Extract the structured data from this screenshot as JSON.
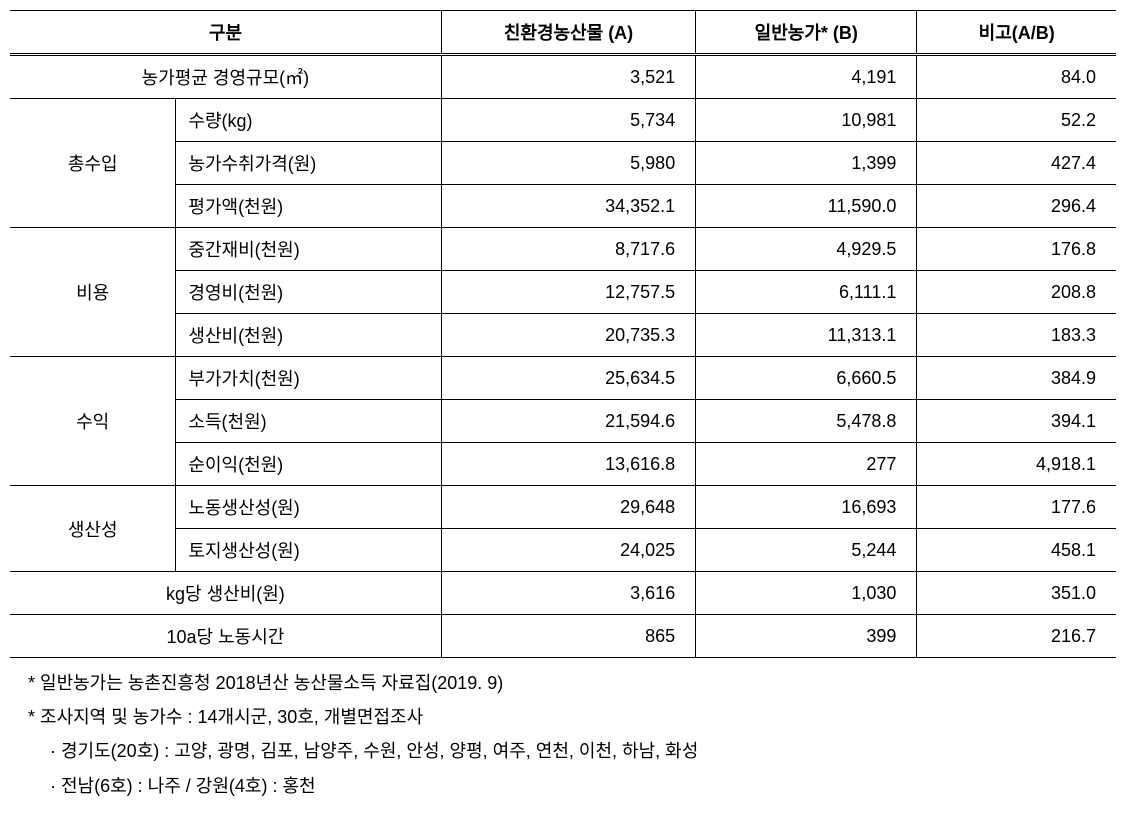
{
  "headers": {
    "category": "구분",
    "col_a": "친환경농산물 (A)",
    "col_b": "일반농가* (B)",
    "col_c": "비고(A/B)"
  },
  "rows": {
    "farm_avg": {
      "label": "농가평균 경영규모(㎡)",
      "a": "3,521",
      "b": "4,191",
      "c": "84.0"
    },
    "income_group": {
      "label": "총수입"
    },
    "income_qty": {
      "label": "수량(kg)",
      "a": "5,734",
      "b": "10,981",
      "c": "52.2"
    },
    "income_price": {
      "label": "농가수취가격(원)",
      "a": "5,980",
      "b": "1,399",
      "c": "427.4"
    },
    "income_eval": {
      "label": "평가액(천원)",
      "a": "34,352.1",
      "b": "11,590.0",
      "c": "296.4"
    },
    "cost_group": {
      "label": "비용"
    },
    "cost_inter": {
      "label": "중간재비(천원)",
      "a": "8,717.6",
      "b": "4,929.5",
      "c": "176.8"
    },
    "cost_mgmt": {
      "label": "경영비(천원)",
      "a": "12,757.5",
      "b": "6,111.1",
      "c": "208.8"
    },
    "cost_prod": {
      "label": "생산비(천원)",
      "a": "20,735.3",
      "b": "11,313.1",
      "c": "183.3"
    },
    "profit_group": {
      "label": "수익"
    },
    "profit_added": {
      "label": "부가가치(천원)",
      "a": "25,634.5",
      "b": "6,660.5",
      "c": "384.9"
    },
    "profit_income": {
      "label": "소득(천원)",
      "a": "21,594.6",
      "b": "5,478.8",
      "c": "394.1"
    },
    "profit_net": {
      "label": "순이익(천원)",
      "a": "13,616.8",
      "b": "277",
      "c": "4,918.1"
    },
    "prod_group": {
      "label": "생산성"
    },
    "prod_labor": {
      "label": "노동생산성(원)",
      "a": "29,648",
      "b": "16,693",
      "c": "177.6"
    },
    "prod_land": {
      "label": "토지생산성(원)",
      "a": "24,025",
      "b": "5,244",
      "c": "458.1"
    },
    "kg_cost": {
      "label": "kg당 생산비(원)",
      "a": "3,616",
      "b": "1,030",
      "c": "351.0"
    },
    "labor_10a": {
      "label": "10a당 노동시간",
      "a": "865",
      "b": "399",
      "c": "216.7"
    }
  },
  "footnotes": {
    "n1": "* 일반농가는 농촌진흥청 2018년산 농산물소득 자료집(2019. 9)",
    "n2": "* 조사지역 및 농가수 : 14개시군, 30호, 개별면접조사",
    "n3": "· 경기도(20호) : 고양, 광명, 김포, 남양주, 수원, 안성, 양평, 여주, 연천, 이천, 하남, 화성",
    "n4": "· 전남(6호) : 나주 / 강원(4호) : 홍천"
  }
}
